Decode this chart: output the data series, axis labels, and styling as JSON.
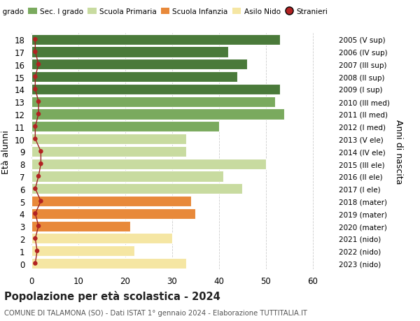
{
  "ages": [
    0,
    1,
    2,
    3,
    4,
    5,
    6,
    7,
    8,
    9,
    10,
    11,
    12,
    13,
    14,
    15,
    16,
    17,
    18
  ],
  "values": [
    33,
    22,
    30,
    21,
    35,
    34,
    45,
    41,
    50,
    33,
    33,
    40,
    54,
    52,
    53,
    44,
    46,
    42,
    53
  ],
  "right_labels": [
    "2023 (nido)",
    "2022 (nido)",
    "2021 (nido)",
    "2020 (mater)",
    "2019 (mater)",
    "2018 (mater)",
    "2017 (I ele)",
    "2016 (II ele)",
    "2015 (III ele)",
    "2014 (IV ele)",
    "2013 (V ele)",
    "2012 (I med)",
    "2011 (II med)",
    "2010 (III med)",
    "2009 (I sup)",
    "2008 (II sup)",
    "2007 (III sup)",
    "2006 (IV sup)",
    "2005 (V sup)"
  ],
  "bar_colors": [
    "#f5e6a3",
    "#f5e6a3",
    "#f5e6a3",
    "#e8893a",
    "#e8893a",
    "#e8893a",
    "#c8dba0",
    "#c8dba0",
    "#c8dba0",
    "#c8dba0",
    "#c8dba0",
    "#7aaa5e",
    "#7aaa5e",
    "#7aaa5e",
    "#4a7a3a",
    "#4a7a3a",
    "#4a7a3a",
    "#4a7a3a",
    "#4a7a3a"
  ],
  "stranieri_dot_x": [
    0.8,
    1.2,
    0.8,
    1.5,
    0.8,
    2.0,
    0.8,
    1.5,
    2.0,
    2.0,
    0.8,
    0.8,
    1.5,
    1.5,
    0.8,
    0.8,
    1.5,
    0.8,
    0.8
  ],
  "stranieri_color": "#b22222",
  "stranieri_line_color": "#9b2222",
  "legend_labels": [
    "Sec. II grado",
    "Sec. I grado",
    "Scuola Primaria",
    "Scuola Infanzia",
    "Asilo Nido",
    "Stranieri"
  ],
  "legend_colors": [
    "#4a7a3a",
    "#7aaa5e",
    "#c8dba0",
    "#e8893a",
    "#f5e6a3",
    "#b22222"
  ],
  "title": "Popolazione per età scolastica - 2024",
  "subtitle": "COMUNE DI TALAMONA (SO) - Dati ISTAT 1° gennaio 2024 - Elaborazione TUTTITALIA.IT",
  "ylabel": "Età alunni",
  "ylabel_right": "Anni di nascita",
  "xlim": [
    0,
    65
  ],
  "xticks": [
    0,
    10,
    20,
    30,
    40,
    50,
    60
  ],
  "background_color": "#ffffff",
  "grid_color": "#cccccc"
}
